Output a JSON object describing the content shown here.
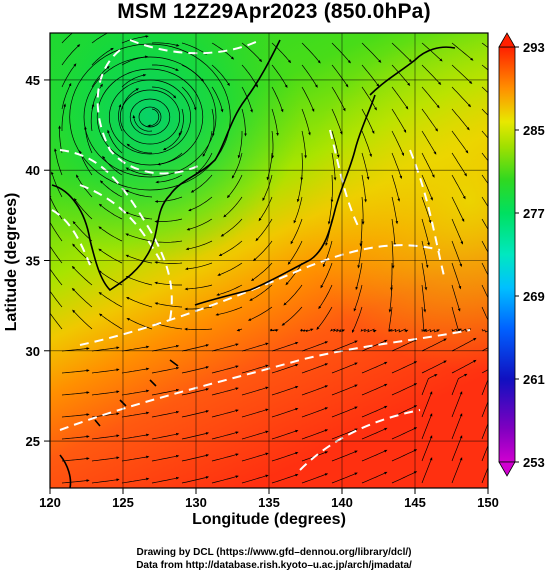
{
  "title": "MSM 12Z29Apr2023 (850.0hPa)",
  "map": {
    "type": "temperature-streamline-map",
    "xlabel": "Longitude (degrees)",
    "ylabel": "Latitude  (degrees)",
    "xlim": [
      120,
      150
    ],
    "ylim": [
      22.4,
      47.6
    ],
    "xticks": [
      120,
      125,
      130,
      135,
      140,
      145,
      150
    ],
    "yticks": [
      25,
      30,
      35,
      40,
      45
    ],
    "colorbar": {
      "ticks": [
        253,
        261,
        269,
        277,
        285,
        293
      ],
      "min": 253,
      "max": 293,
      "colors": [
        "#e010e0",
        "#6000c0",
        "#0010c0",
        "#0050ff",
        "#00b8ff",
        "#00e8d0",
        "#00e070",
        "#20d020",
        "#90e000",
        "#e0e800",
        "#ffb000",
        "#ff6000",
        "#ff2000"
      ]
    }
  },
  "credits": {
    "line1": "Drawing by DCL (https://www.gfd–dennou.org/library/dcl/)",
    "line2": "Data from http://database.rish.kyoto–u.ac.jp/arch/jmadata/"
  }
}
